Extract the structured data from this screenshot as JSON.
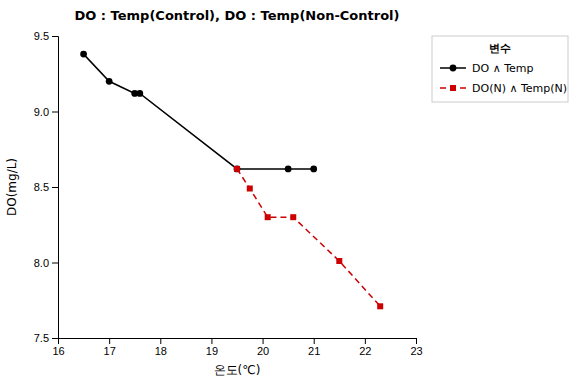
{
  "chart_data": {
    "type": "line",
    "title": "DO : Temp(Control), DO : Temp(Non-Control)",
    "x_label": "온도(℃)",
    "y_label": "DO(mg/L)",
    "legend_title": "변수",
    "legend": "right",
    "grid": false,
    "xlim": [
      16,
      23
    ],
    "ylim": [
      7.5,
      9.5
    ],
    "xticks": [
      16,
      17,
      18,
      19,
      20,
      21,
      22,
      23
    ],
    "yticks": [
      7.5,
      {
        "value": 8.0,
        "label": "8.0"
      },
      8.5,
      {
        "value": 9.0,
        "label": "9.0"
      },
      9.5
    ],
    "series": [
      {
        "name": "DO ∧ Temp",
        "color": "#000000",
        "marker": "circle",
        "line_style": "solid",
        "x": [
          16.5,
          17.0,
          17.5,
          17.6,
          19.5,
          20.5,
          21.0
        ],
        "values": [
          9.38,
          9.2,
          9.12,
          9.12,
          8.62,
          8.62,
          8.62
        ]
      },
      {
        "name": "DO(N) ∧ Temp(N)",
        "color": "#cc0000",
        "marker": "square",
        "line_style": "dashed",
        "x": [
          19.5,
          19.75,
          20.1,
          20.6,
          21.5,
          22.3
        ],
        "values": [
          8.62,
          8.49,
          8.3,
          8.3,
          8.01,
          7.71
        ]
      }
    ]
  }
}
